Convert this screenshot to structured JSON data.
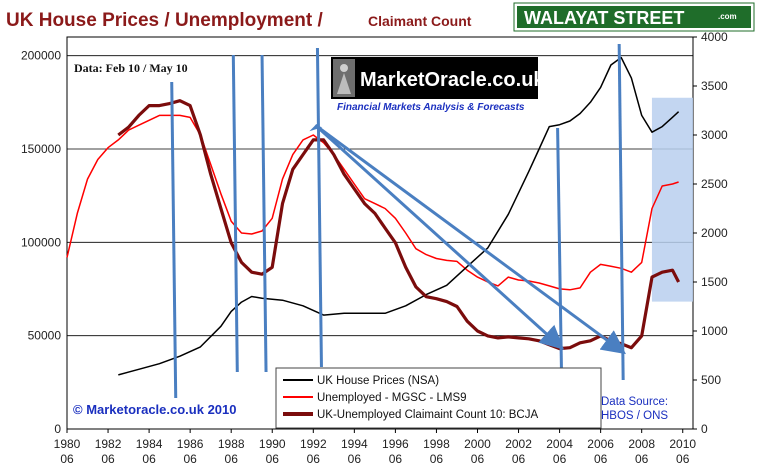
{
  "header": {
    "title_part1": "UK House Prices  / Unemployment  /",
    "title_part2": "Claimant Count",
    "brand_badge": "WALAYAT STREET",
    "brand_badge_suffix": ".com",
    "logo_text": "MarketOracle.co.uk",
    "logo_tagline": "Financial Markets Analysis & Forecasts",
    "data_note": "Data: Feb 10 / May 10",
    "copyright": "© Marketoracle.co.uk  2010",
    "source_line1": "Data Source:",
    "source_line2": "HBOS / ONS"
  },
  "colors": {
    "house_prices": "#000000",
    "unemployed_mgsc": "#ff0000",
    "claimant_count": "#7b0c0c",
    "annotation": "#4a7fc1",
    "highlight": "#b8cfee",
    "title": "#8b1a1a",
    "badge_bg": "#1f6d2a"
  },
  "chart_data": {
    "type": "line",
    "x_tick_labels_top": [
      "1980",
      "1982",
      "1984",
      "1986",
      "1988",
      "1990",
      "1992",
      "1994",
      "1996",
      "1998",
      "2000",
      "2002",
      "2004",
      "2006",
      "2008",
      "2010"
    ],
    "x_tick_labels_bottom": [
      "06",
      "06",
      "06",
      "06",
      "06",
      "06",
      "06",
      "06",
      "06",
      "06",
      "06",
      "06",
      "06",
      "06",
      "06",
      "06"
    ],
    "xlim": [
      1980.5,
      2011.0
    ],
    "y_left": {
      "ylim": [
        0,
        210000
      ],
      "ticks": [
        "0",
        "50000",
        "100000",
        "150000",
        "200000"
      ]
    },
    "y_right": {
      "ylim": [
        0,
        4000
      ],
      "ticks": [
        "0",
        "500",
        "1000",
        "1500",
        "2000",
        "2500",
        "3000",
        "3500",
        "4000"
      ]
    },
    "grid": "horizontal",
    "legend_position": "bottom-center",
    "series": [
      {
        "name": "UK House Prices (NSA)",
        "axis": "left",
        "x": [
          1983.0,
          1984.0,
          1985.0,
          1986.0,
          1987.0,
          1988.0,
          1988.5,
          1989.0,
          1989.5,
          1990.0,
          1991.0,
          1992.0,
          1993.0,
          1994.0,
          1995.0,
          1996.0,
          1997.0,
          1998.0,
          1999.0,
          2000.0,
          2001.0,
          2002.0,
          2003.0,
          2003.5,
          2004.0,
          2004.5,
          2005.0,
          2005.5,
          2006.0,
          2006.5,
          2007.0,
          2007.5,
          2008.0,
          2008.5,
          2009.0,
          2009.5,
          2010.0,
          2010.3
        ],
        "y": [
          29000,
          32000,
          35000,
          39000,
          44000,
          55000,
          63000,
          68000,
          71000,
          70000,
          69000,
          66000,
          61000,
          62000,
          62000,
          62000,
          66000,
          72000,
          77000,
          87000,
          97000,
          115000,
          138000,
          150000,
          162000,
          163000,
          165000,
          169000,
          175000,
          183000,
          195000,
          199000,
          188000,
          168000,
          159000,
          162000,
          167000,
          170000
        ]
      },
      {
        "name": "Unemployed - MGSC - LMS9",
        "axis": "right",
        "x": [
          1980.5,
          1981.0,
          1981.5,
          1982.0,
          1982.5,
          1983.0,
          1983.5,
          1984.0,
          1984.5,
          1985.0,
          1985.5,
          1986.0,
          1986.5,
          1987.0,
          1987.5,
          1988.0,
          1988.5,
          1989.0,
          1989.5,
          1990.0,
          1990.5,
          1991.0,
          1991.5,
          1992.0,
          1992.5,
          1993.0,
          1993.5,
          1994.0,
          1994.5,
          1995.0,
          1995.5,
          1996.0,
          1996.5,
          1997.0,
          1997.5,
          1998.0,
          1998.5,
          1999.0,
          1999.5,
          2000.0,
          2000.5,
          2001.0,
          2001.5,
          2002.0,
          2002.5,
          2003.0,
          2003.5,
          2004.0,
          2004.5,
          2005.0,
          2005.5,
          2006.0,
          2006.5,
          2007.0,
          2007.5,
          2008.0,
          2008.5,
          2009.0,
          2009.5,
          2010.0,
          2010.3
        ],
        "y": [
          1750,
          2200,
          2550,
          2750,
          2870,
          2950,
          3050,
          3100,
          3150,
          3200,
          3200,
          3200,
          3180,
          3000,
          2700,
          2400,
          2120,
          2000,
          1990,
          2020,
          2150,
          2550,
          2800,
          2950,
          3000,
          2920,
          2800,
          2650,
          2500,
          2350,
          2300,
          2250,
          2150,
          2000,
          1840,
          1780,
          1740,
          1720,
          1710,
          1620,
          1550,
          1500,
          1460,
          1550,
          1520,
          1510,
          1490,
          1460,
          1430,
          1420,
          1440,
          1600,
          1680,
          1660,
          1640,
          1600,
          1700,
          2250,
          2480,
          2500,
          2520
        ]
      },
      {
        "name": "UK-Unemployed Claimaint Count 10: BCJA",
        "axis": "right",
        "x": [
          1983.0,
          1983.5,
          1984.0,
          1984.5,
          1985.0,
          1985.5,
          1986.0,
          1986.5,
          1987.0,
          1987.5,
          1988.0,
          1988.5,
          1989.0,
          1989.5,
          1990.0,
          1990.5,
          1991.0,
          1991.5,
          1992.0,
          1992.5,
          1993.0,
          1993.5,
          1994.0,
          1994.5,
          1995.0,
          1995.5,
          1996.0,
          1996.5,
          1997.0,
          1997.5,
          1998.0,
          1998.5,
          1999.0,
          1999.5,
          2000.0,
          2000.5,
          2001.0,
          2001.5,
          2002.0,
          2002.5,
          2003.0,
          2003.5,
          2004.0,
          2004.5,
          2005.0,
          2005.5,
          2006.0,
          2006.5,
          2007.0,
          2007.5,
          2008.0,
          2008.5,
          2009.0,
          2009.5,
          2010.0,
          2010.3
        ],
        "y": [
          3000,
          3080,
          3200,
          3300,
          3300,
          3320,
          3350,
          3300,
          3000,
          2600,
          2250,
          1900,
          1700,
          1600,
          1580,
          1650,
          2300,
          2650,
          2800,
          2950,
          2950,
          2800,
          2600,
          2450,
          2300,
          2200,
          2050,
          1900,
          1650,
          1450,
          1350,
          1330,
          1300,
          1250,
          1100,
          1000,
          950,
          930,
          940,
          930,
          920,
          900,
          860,
          820,
          830,
          880,
          900,
          950,
          900,
          870,
          830,
          950,
          1550,
          1600,
          1620,
          1500
        ]
      }
    ],
    "annotations": {
      "vertical_markers_x": [
        1985.7,
        1988.7,
        1990.1,
        1992.8,
        2004.5,
        2007.5
      ],
      "arrows": [
        {
          "from": [
            1992.6,
            3100
          ],
          "to": [
            2004.5,
            850
          ]
        },
        {
          "from": [
            1992.6,
            3100
          ],
          "to": [
            2007.5,
            800
          ]
        }
      ],
      "highlight_box": {
        "x0": 2009.0,
        "x1": 2011.0,
        "y0": 1300,
        "y1": 3380
      }
    }
  }
}
